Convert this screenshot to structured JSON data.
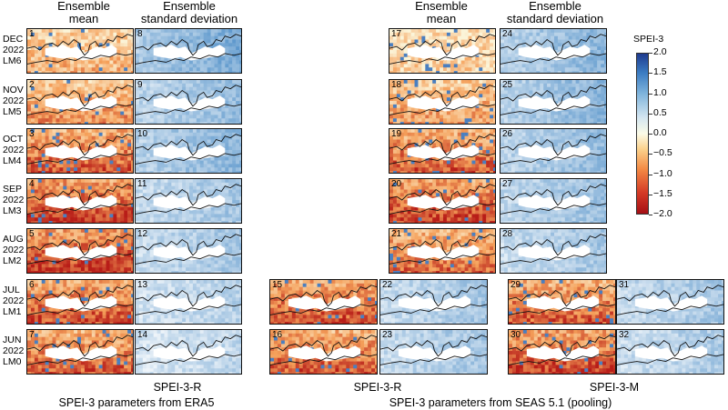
{
  "headers": {
    "left_mean": "Ensemble\nmean",
    "left_sd": "Ensemble\nstandard deviation",
    "right_mean": "Ensemble\nmean",
    "right_sd": "Ensemble\nstandard deviation"
  },
  "rows": [
    {
      "label": "DEC\n2022\nLM6"
    },
    {
      "label": "NOV\n2022\nLM5"
    },
    {
      "label": "OCT\n2022\nLM4"
    },
    {
      "label": "SEP\n2022\nLM3"
    },
    {
      "label": "AUG\n2022\nLM2"
    },
    {
      "label": "JUL\n2022\nLM1"
    },
    {
      "label": "JUN\n2022\nLM0"
    }
  ],
  "panels": {
    "p1": "1",
    "p2": "2",
    "p3": "3",
    "p4": "4",
    "p5": "5",
    "p6": "6",
    "p7": "7",
    "p8": "8",
    "p9": "9",
    "p10": "10",
    "p11": "11",
    "p12": "12",
    "p13": "13",
    "p14": "14",
    "p15": "15",
    "p16": "16",
    "p17": "17",
    "p18": "18",
    "p19": "19",
    "p20": "20",
    "p21": "21",
    "p22": "22",
    "p23": "23",
    "p24": "24",
    "p25": "25",
    "p26": "26",
    "p27": "27",
    "p28": "28",
    "p29": "29",
    "p30": "30",
    "p31": "31",
    "p32": "32"
  },
  "footers": {
    "spei_r_left": "SPEI-3-R",
    "era5": "SPEI-3 parameters from ERA5",
    "spei_r_mid": "SPEI-3-R",
    "seas": "SPEI-3 parameters from SEAS 5.1 (pooling)",
    "spei_m": "SPEI-3-M"
  },
  "colorbar": {
    "title": "SPEI-3",
    "ticks": [
      "2.0",
      "1.5",
      "1.0",
      "0.5",
      "0.0",
      "−0.5",
      "−1.0",
      "−1.5",
      "−2.0"
    ]
  },
  "colors": {
    "wet": "#2c5fa8",
    "neutral": "#f6f6e8",
    "dry": "#c42a20"
  }
}
